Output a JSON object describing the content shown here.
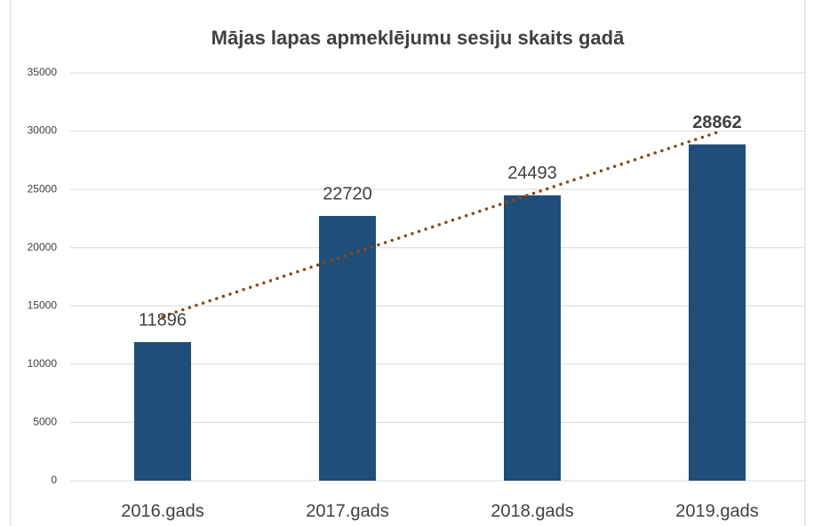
{
  "chart_data": {
    "type": "bar",
    "title": "Mājas lapas apmeklējumu sesiju skaits gadā",
    "categories": [
      "2016.gads",
      "2017.gads",
      "2018.gads",
      "2019.gads"
    ],
    "values": [
      11896,
      22720,
      24493,
      28862
    ],
    "value_label_bold": [
      false,
      false,
      false,
      true
    ],
    "color": "#1f4e79",
    "ylim": [
      0,
      35000
    ],
    "yticks": [
      0,
      5000,
      10000,
      15000,
      20000,
      25000,
      30000,
      35000
    ],
    "grid": true,
    "trendline": {
      "type": "linear",
      "color": "#8b4513"
    }
  }
}
